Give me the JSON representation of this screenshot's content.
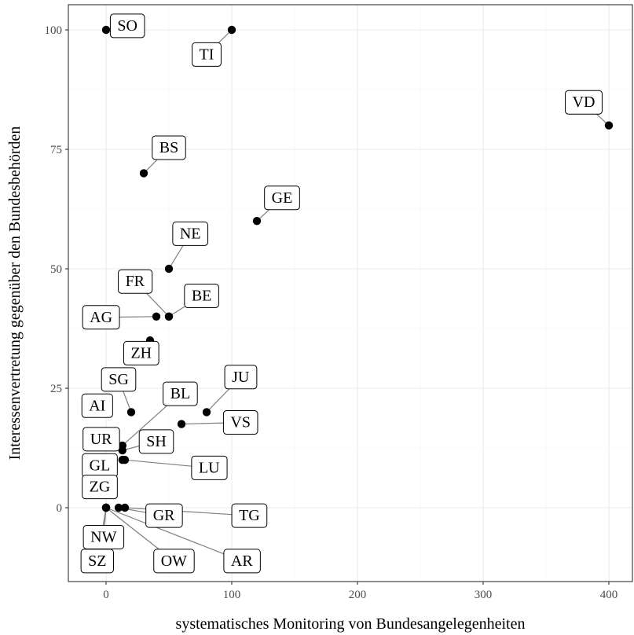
{
  "chart_data": {
    "type": "scatter",
    "title": "",
    "xlabel": "systematisches Monitoring von Bundesangelegenheiten",
    "ylabel": "Interessenvertretung gegenüber den Bundesbehörden",
    "xlim": [
      -30,
      420
    ],
    "ylim": [
      -15,
      105
    ],
    "x_ticks": [
      0,
      100,
      200,
      300,
      400
    ],
    "y_ticks": [
      0,
      25,
      50,
      75,
      100
    ],
    "grid": true,
    "legend": "none",
    "point_color": "#000000",
    "points": [
      {
        "label": "SO",
        "x": 0,
        "y": 100,
        "label_x": 17,
        "label_y": 101
      },
      {
        "label": "TI",
        "x": 100,
        "y": 100,
        "label_x": 80,
        "label_y": 95
      },
      {
        "label": "VD",
        "x": 400,
        "y": 80,
        "label_x": 380,
        "label_y": 85
      },
      {
        "label": "BS",
        "x": 30,
        "y": 70,
        "label_x": 50,
        "label_y": 75.5
      },
      {
        "label": "GE",
        "x": 120,
        "y": 60,
        "label_x": 140,
        "label_y": 65
      },
      {
        "label": "NE",
        "x": 50,
        "y": 50,
        "label_x": 67,
        "label_y": 57.5
      },
      {
        "label": "FR",
        "x": 50,
        "y": 40,
        "label_x": 23,
        "label_y": 47.5
      },
      {
        "label": "BE",
        "x": 50,
        "y": 40,
        "label_x": 76,
        "label_y": 44.5
      },
      {
        "label": "AG",
        "x": 40,
        "y": 40,
        "label_x": -4,
        "label_y": 40
      },
      {
        "label": "ZH",
        "x": 35,
        "y": 35,
        "label_x": 28,
        "label_y": 32.5
      },
      {
        "label": "SG",
        "x": 20,
        "y": 20,
        "label_x": 10,
        "label_y": 27
      },
      {
        "label": "JU",
        "x": 80,
        "y": 20,
        "label_x": 107,
        "label_y": 27.5
      },
      {
        "label": "AI",
        "x": 0,
        "y": 20,
        "label_x": -7,
        "label_y": 21.5
      },
      {
        "label": "BL",
        "x": 13,
        "y": 13,
        "label_x": 59,
        "label_y": 24
      },
      {
        "label": "VS",
        "x": 60,
        "y": 17.5,
        "label_x": 107,
        "label_y": 18
      },
      {
        "label": "UR",
        "x": 0,
        "y": 13,
        "label_x": -4,
        "label_y": 14.5
      },
      {
        "label": "SH",
        "x": 13,
        "y": 12,
        "label_x": 40,
        "label_y": 14
      },
      {
        "label": "GL",
        "x": 13,
        "y": 10,
        "label_x": -5,
        "label_y": 9
      },
      {
        "label": "LU",
        "x": 15,
        "y": 10,
        "label_x": 82,
        "label_y": 8.5
      },
      {
        "label": "ZG",
        "x": 0,
        "y": 0,
        "label_x": -5,
        "label_y": 4.5
      },
      {
        "label": "GR",
        "x": 10,
        "y": 0,
        "label_x": 46,
        "label_y": -1.5
      },
      {
        "label": "TG",
        "x": 15,
        "y": 0,
        "label_x": 114,
        "label_y": -1.5
      },
      {
        "label": "NW",
        "x": 0,
        "y": 0,
        "label_x": -2,
        "label_y": -6
      },
      {
        "label": "SZ",
        "x": 0,
        "y": 0,
        "label_x": -7,
        "label_y": -11
      },
      {
        "label": "OW",
        "x": 0,
        "y": 0,
        "label_x": 54,
        "label_y": -11
      },
      {
        "label": "AR",
        "x": 0,
        "y": 0,
        "label_x": 108,
        "label_y": -11
      }
    ]
  }
}
